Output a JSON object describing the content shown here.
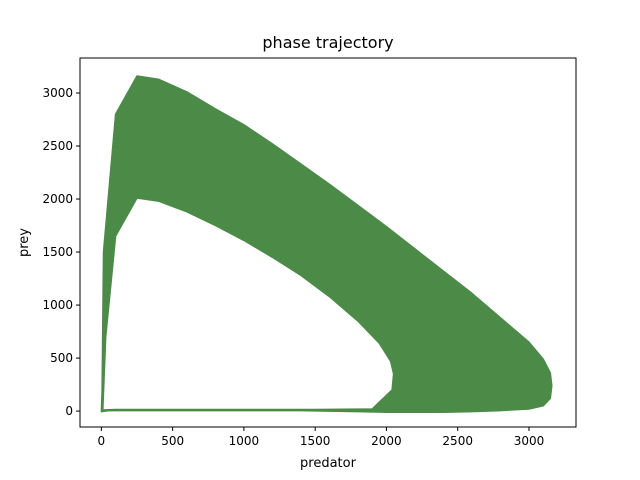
{
  "chart_data": {
    "type": "line",
    "title": "phase trajectory",
    "xlabel": "predator",
    "ylabel": "prey",
    "xlim": [
      -150,
      3330
    ],
    "ylim": [
      -150,
      3330
    ],
    "x_ticks": [
      "0",
      "500",
      "1000",
      "1500",
      "2000",
      "2500",
      "3000"
    ],
    "y_ticks": [
      "0",
      "500",
      "1000",
      "1500",
      "2000",
      "2500",
      "3000"
    ],
    "grid": false,
    "legend": "none",
    "series_color": "#4c8a48",
    "series": [
      {
        "name": "",
        "outer_cycle": {
          "x": [
            0,
            5,
            15,
            100,
            250,
            400,
            600,
            800,
            1000,
            1200,
            1400,
            1600,
            1800,
            2000,
            2200,
            2400,
            2600,
            2800,
            3000,
            3100,
            3150,
            3160,
            3150,
            3100,
            3000,
            2800,
            2600,
            2400,
            2200,
            2000,
            1800,
            1600,
            1400,
            1200,
            1000,
            800,
            600,
            400,
            200,
            50,
            0
          ],
          "y": [
            -5,
            200,
            1500,
            2800,
            3160,
            3130,
            3010,
            2850,
            2700,
            2520,
            2330,
            2140,
            1940,
            1740,
            1530,
            1320,
            1110,
            880,
            650,
            490,
            360,
            240,
            120,
            50,
            20,
            5,
            -5,
            -10,
            -10,
            -10,
            -5,
            0,
            5,
            5,
            5,
            5,
            5,
            5,
            5,
            5,
            -5
          ]
        },
        "inner_cycle": {
          "x": [
            10,
            30,
            100,
            250,
            400,
            600,
            800,
            1000,
            1200,
            1400,
            1600,
            1800,
            1950,
            2030,
            2050,
            2040,
            1900,
            1500,
            1000,
            500,
            100,
            10
          ],
          "y": [
            10,
            700,
            1650,
            2010,
            1980,
            1880,
            1750,
            1610,
            1450,
            1280,
            1080,
            850,
            640,
            470,
            350,
            200,
            20,
            15,
            15,
            15,
            15,
            10
          ]
        }
      }
    ]
  }
}
